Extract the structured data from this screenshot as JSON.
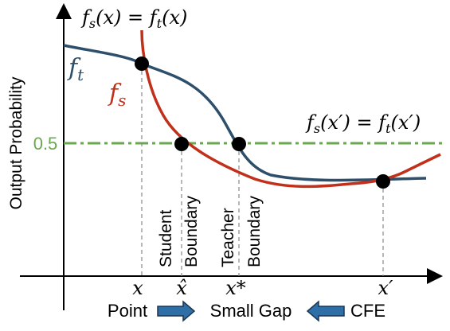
{
  "title_eq": {
    "parts": [
      "f",
      "s",
      "(x) = ",
      "f",
      "t",
      "(x)"
    ]
  },
  "cfe_eq": {
    "parts": [
      "f",
      "s",
      "(x′) = ",
      "f",
      "t",
      "(x′)"
    ]
  },
  "curve_labels": {
    "teacher": [
      "f",
      "t"
    ],
    "student": [
      "f",
      "s"
    ]
  },
  "y_axis_label": "Output Probability",
  "threshold_label": "0.5",
  "boundaries": {
    "student": [
      "Student",
      "Boundary"
    ],
    "teacher": [
      "Teacher",
      "Boundary"
    ]
  },
  "x_labels": [
    "x",
    "x̂",
    "x*",
    "x′"
  ],
  "flow": [
    "Point",
    "Small Gap",
    "CFE"
  ]
}
